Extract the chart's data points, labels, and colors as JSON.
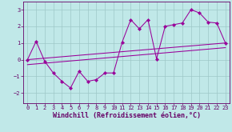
{
  "xlabel": "Windchill (Refroidissement éolien,°C)",
  "x_data": [
    0,
    1,
    2,
    3,
    4,
    5,
    6,
    7,
    8,
    9,
    10,
    11,
    12,
    13,
    14,
    15,
    16,
    17,
    18,
    19,
    20,
    21,
    22,
    23
  ],
  "y_data": [
    0.0,
    1.1,
    -0.1,
    -0.8,
    -1.3,
    -1.7,
    -0.7,
    -1.3,
    -1.2,
    -0.8,
    -0.8,
    1.05,
    2.4,
    1.85,
    2.4,
    0.05,
    2.0,
    2.1,
    2.2,
    3.0,
    2.8,
    2.25,
    2.2,
    1.0
  ],
  "line1_x": [
    0,
    23
  ],
  "line1_y": [
    0.0,
    1.0
  ],
  "line2_x": [
    0,
    23
  ],
  "line2_y": [
    -0.3,
    0.72
  ],
  "ylim": [
    -2.6,
    3.5
  ],
  "xlim": [
    -0.5,
    23.5
  ],
  "yticks": [
    -2,
    -1,
    0,
    1,
    2,
    3
  ],
  "xticks": [
    0,
    1,
    2,
    3,
    4,
    5,
    6,
    7,
    8,
    9,
    10,
    11,
    12,
    13,
    14,
    15,
    16,
    17,
    18,
    19,
    20,
    21,
    22,
    23
  ],
  "line_color": "#990099",
  "grid_color": "#9ec8c8",
  "bg_color": "#c0e8e8",
  "text_color": "#660066",
  "tick_fontsize": 5.0,
  "label_fontsize": 6.0,
  "linewidth": 0.75,
  "markersize": 2.2
}
